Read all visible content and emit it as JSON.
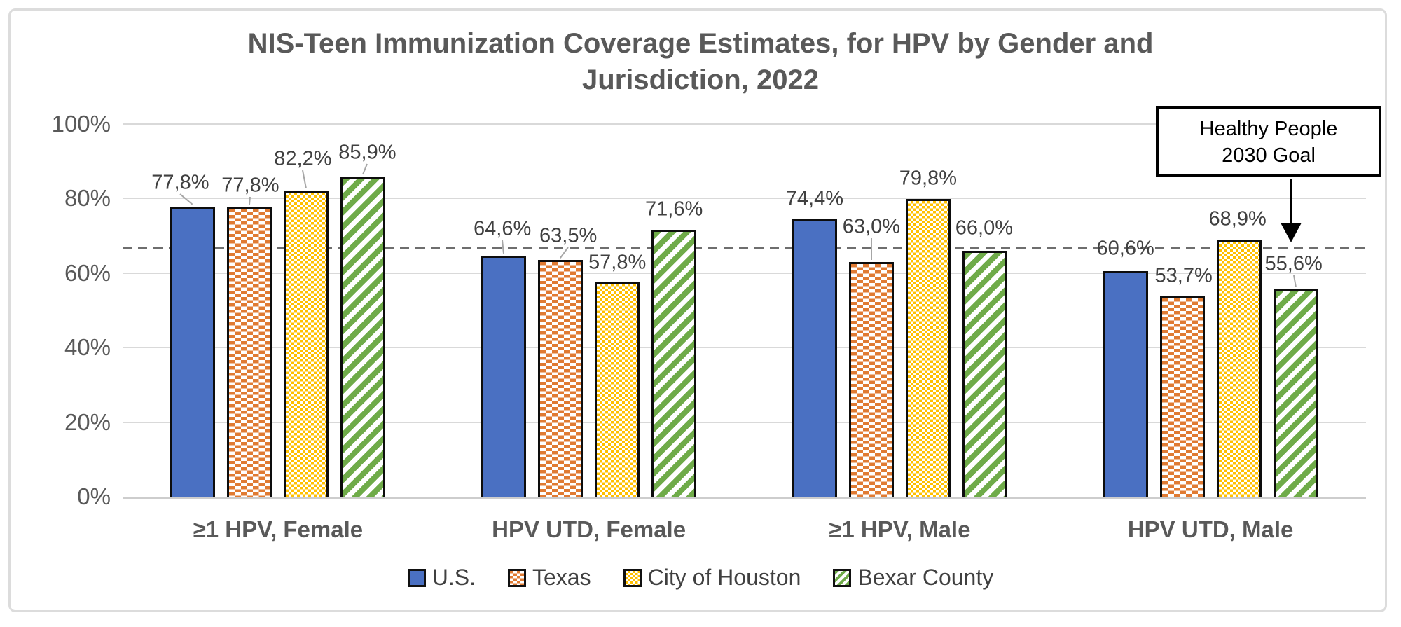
{
  "chart_data": {
    "type": "bar",
    "title_lines": [
      "NIS-Teen Immunization Coverage Estimates, for HPV by Gender and",
      "Jurisdiction, 2022"
    ],
    "categories": [
      "≥1 HPV, Female",
      "HPV UTD, Female",
      "≥1 HPV, Male",
      "HPV UTD, Male"
    ],
    "y_axis": {
      "min": 0,
      "max": 100,
      "tick_step": 20,
      "tick_labels": [
        "0%",
        "20%",
        "40%",
        "60%",
        "80%",
        "100%"
      ]
    },
    "goal_line": {
      "value": 67,
      "label": "Healthy People 2030 Goal"
    },
    "grid": true,
    "legend_position": "bottom",
    "series": [
      {
        "name": "U.S.",
        "slug": "us",
        "color": "#4A70C2",
        "pattern": "solid",
        "values": [
          77.8,
          64.6,
          74.4,
          60.6
        ],
        "labels": [
          "77,8%",
          "64,6%",
          "74,4%",
          "60,6%"
        ],
        "label_pos": [
          [
            -18,
            -5,
            1
          ],
          [
            -2,
            -9,
            1
          ],
          [
            0,
            0,
            0
          ],
          [
            0,
            -3,
            0
          ]
        ]
      },
      {
        "name": "Texas",
        "slug": "texas",
        "color": "#E07B33",
        "pattern": "brick",
        "values": [
          77.8,
          63.5,
          63.0,
          53.7
        ],
        "labels": [
          "77,8%",
          "63,5%",
          "63,0%",
          "53,7%"
        ],
        "label_pos": [
          [
            1,
            -1,
            1
          ],
          [
            11,
            -5,
            1
          ],
          [
            0,
            -21,
            1
          ],
          [
            2,
            0,
            0
          ]
        ]
      },
      {
        "name": "City of Houston",
        "slug": "city-of-houston",
        "color": "#FFC000",
        "pattern": "checker",
        "values": [
          82.2,
          57.8,
          79.8,
          68.9
        ],
        "labels": [
          "82,2%",
          "57,8%",
          "79,8%",
          "68,9%"
        ],
        "label_pos": [
          [
            -5,
            -16,
            1
          ],
          [
            0,
            2,
            0
          ],
          [
            0,
            0,
            0
          ],
          [
            -2,
            0,
            0
          ]
        ]
      },
      {
        "name": "Bexar County",
        "slug": "bexar-county",
        "color": "#6FAB49",
        "pattern": "diag",
        "values": [
          85.9,
          71.6,
          66.0,
          55.6
        ],
        "labels": [
          "85,9%",
          "71,6%",
          "66,0%",
          "55,6%"
        ],
        "label_pos": [
          [
            6,
            -5,
            1
          ],
          [
            0,
            0,
            0
          ],
          [
            -1,
            -3,
            0
          ],
          [
            -3,
            -7,
            1
          ]
        ]
      }
    ],
    "legend": [
      "U.S.",
      "Texas",
      "City of Houston",
      "Bexar County"
    ]
  },
  "annotation": {
    "line1": "Healthy People",
    "line2": "2030 Goal"
  },
  "colors": {
    "background": "#FFFFFF",
    "frame_border": "#DCDCDC",
    "grid": "#D9D9D9",
    "axis": "#CDCDCD",
    "title_text": "#595959",
    "tick_text": "#595959",
    "category_text": "#595959",
    "data_label_text": "#404040",
    "legend_text": "#404040",
    "goal_line": "#6E6E6E",
    "bar_border": "#0D0D0D",
    "leader": "#A6A6A6"
  }
}
